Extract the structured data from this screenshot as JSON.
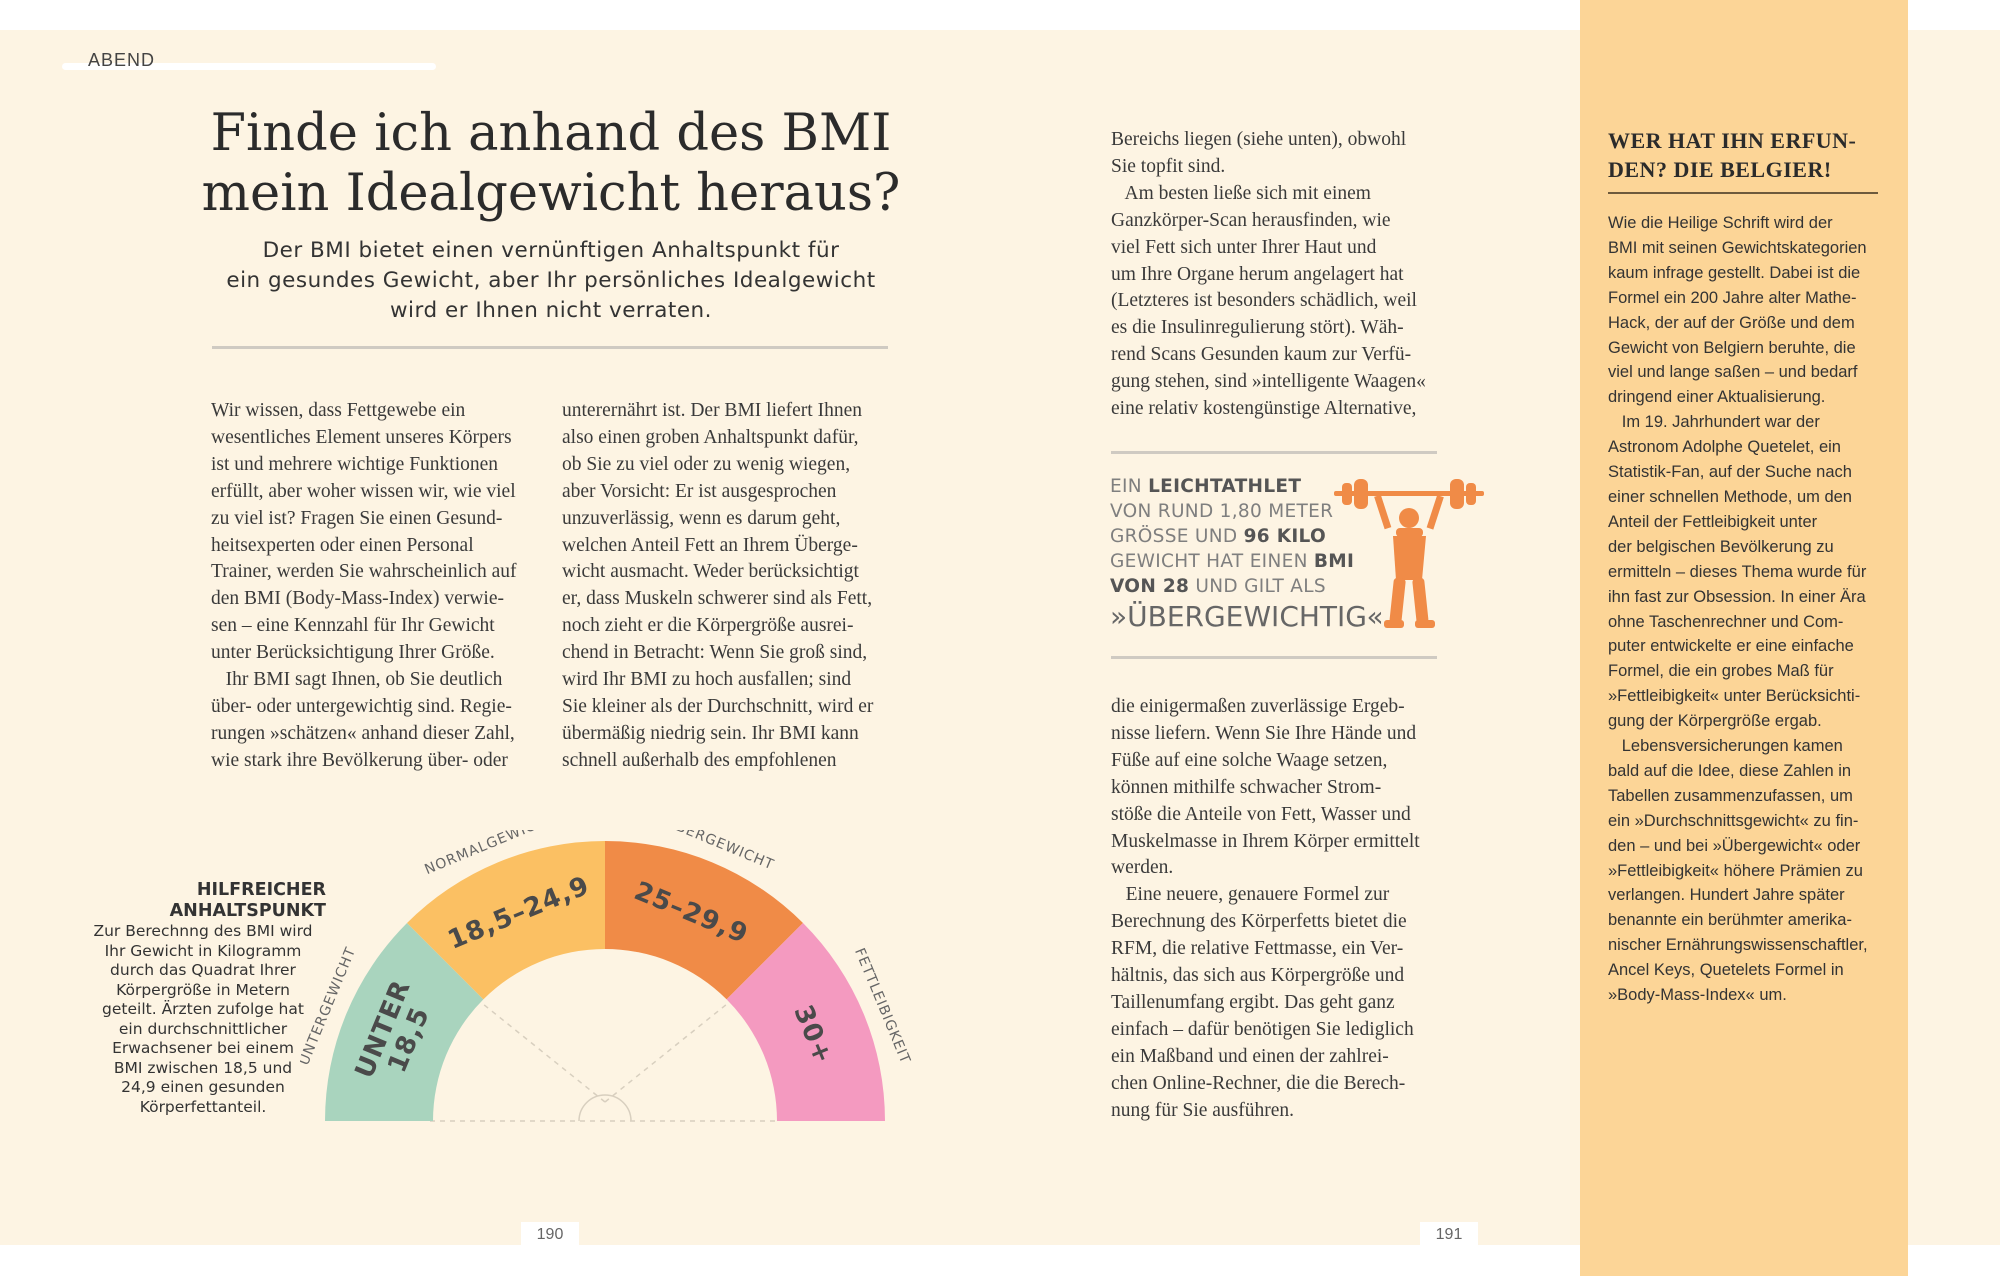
{
  "header": {
    "section": "ABEND"
  },
  "title": "Finde ich anhand des BMI mein Idealgewicht heraus?",
  "subtitle": [
    "Der BMI bietet einen vernünftigen Anhaltspunkt für",
    "ein gesundes Gewicht, aber Ihr persönliches Idealgewicht",
    "wird er Ihnen nicht verraten."
  ],
  "col1": [
    "Wir wissen, dass Fettgewebe ein",
    "wesentliches Element unseres Körpers",
    "ist und mehrere wichtige Funktionen",
    "erfüllt, aber woher wissen wir, wie viel",
    "zu viel ist? Fragen Sie einen Gesund-",
    "heitsexperten oder einen Personal",
    "Trainer, werden Sie wahrscheinlich auf",
    "den BMI (Body-Mass-Index) verwie-",
    "sen – eine Kennzahl für Ihr Gewicht",
    "unter Berücksichtigung Ihrer Größe.",
    "   Ihr BMI sagt Ihnen, ob Sie deutlich",
    "über- oder untergewichtig sind. Regie-",
    "rungen »schätzen« anhand dieser Zahl,",
    "wie stark ihre Bevölkerung über- oder"
  ],
  "col2": [
    "unterernährt ist. Der BMI liefert Ihnen",
    "also einen groben Anhaltspunkt dafür,",
    "ob Sie zu viel oder zu wenig wiegen,",
    "aber Vorsicht: Er ist ausgesprochen",
    "unzuverlässig, wenn es darum geht,",
    "welchen Anteil Fett an Ihrem Überge-",
    "wicht ausmacht. Weder berücksichtigt",
    "er, dass Muskeln schwerer sind als Fett,",
    "noch zieht er die Körpergröße ausrei-",
    "chend in Betracht: Wenn Sie groß sind,",
    "wird Ihr BMI zu hoch ausfallen; sind",
    "Sie kleiner als der Durchschnitt, wird er",
    "übermäßig niedrig sein. Ihr BMI kann",
    "schnell außerhalb des empfohlenen"
  ],
  "col3_top": [
    "Bereichs liegen (siehe unten), obwohl",
    "Sie topfit sind.",
    "   Am besten ließe sich mit einem",
    "Ganzkörper-Scan herausfinden, wie",
    "viel Fett sich unter Ihrer Haut und",
    "um Ihre Organe herum angelagert hat",
    "(Letzteres ist besonders schädlich, weil",
    "es die Insulinregulierung stört). Wäh-",
    "rend Scans Gesunden kaum zur Verfü-",
    "gung stehen, sind »intelligente Waagen«",
    "eine relativ kostengünstige Alternative,"
  ],
  "col3_bottom": [
    "die einigermaßen zuverlässige Ergeb-",
    "nisse liefern. Wenn Sie Ihre Hände und",
    "Füße auf eine solche Waage setzen,",
    "können mithilfe schwacher Strom-",
    "stöße die Anteile von Fett, Wasser und",
    "Muskelmasse in Ihrem Körper ermittelt",
    "werden.",
    "   Eine neuere, genauere Formel zur",
    "Berechnung des Körperfetts bietet die",
    "RFM, die relative Fettmasse, ein Ver-",
    "hältnis, das sich aus Körpergröße und",
    "Taillenumfang ergibt. Das geht ganz",
    "einfach – dafür benötigen Sie lediglich",
    "ein Maßband und einen der zahlrei-",
    "chen Online-Rechner, die die Berech-",
    "nung für Sie ausführen."
  ],
  "athlete": {
    "l1a": "EIN ",
    "l1b": "LEICHTATHLET",
    "l2": "VON RUND 1,80 METER",
    "l3a": "GRÖSSE UND ",
    "l3b": "96 KILO",
    "l4a": "GEWICHT HAT EINEN ",
    "l4b": "BMI",
    "l5a": "VON 28",
    "l5b": " UND GILT ALS",
    "l6": "»ÜBERGEWICHTIG«."
  },
  "help": {
    "title1": "HILFREICHER",
    "title2": "ANHALTSPUNKT",
    "lines": [
      "Zur Berechnng des BMI wird",
      "Ihr Gewicht in Kilogramm",
      "durch das Quadrat Ihrer",
      "Körpergröße in Metern",
      "geteilt. Ärzten zufolge hat",
      "ein durchschnittlicher",
      "Erwachsener bei einem",
      "BMI zwischen 18,5 und",
      "24,9 einen gesunden",
      "Körperfettanteil."
    ]
  },
  "gauge": {
    "segments": [
      {
        "value": "UNTER",
        "value2": "18,5",
        "label": "UNTERGEWICHT",
        "color": "#a9d4be"
      },
      {
        "value": "18,5–24,9",
        "label": "NORMALGEWICHT",
        "color": "#fbc063"
      },
      {
        "value": "25–29,9",
        "label": "ÜBERGEWICHT",
        "color": "#f08b47"
      },
      {
        "value": "30+",
        "label": "FETTLEIBIGKEIT",
        "color": "#f49ac0"
      }
    ]
  },
  "sidebar": {
    "title": "WER HAT IHN ERFUN-\nDEN? DIE BELGIER!",
    "lines": [
      "Wie die Heilige Schrift wird der",
      "BMI mit seinen Gewichtskategorien",
      "kaum infrage gestellt. Dabei ist die",
      "Formel ein 200 Jahre alter Mathe-",
      "Hack, der auf der Größe und dem",
      "Gewicht von Belgiern beruhte, die",
      "viel und lange saßen – und bedarf",
      "dringend einer Aktualisierung.",
      "   Im 19. Jahrhundert war der",
      "Astronom Adolphe Quetelet, ein",
      "Statistik-Fan, auf der Suche nach",
      "einer schnellen Methode, um den",
      "Anteil der Fettleibigkeit unter",
      "der belgischen Bevölkerung zu",
      "ermitteln – dieses Thema wurde für",
      "ihn fast zur Obsession. In einer Ära",
      "ohne Taschenrechner und Com-",
      "puter entwickelte er eine einfache",
      "Formel, die ein grobes Maß für",
      "»Fettleibigkeit« unter Berücksichti-",
      "gung der Körpergröße ergab.",
      "   Lebensversicherungen kamen",
      "bald auf die Idee, diese Zahlen in",
      "Tabellen zusammenzufassen, um",
      "ein »Durchschnittsgewicht« zu fin-",
      "den – und bei »Übergewicht« oder",
      "»Fettleibigkeit« höhere Prämien zu",
      "verlangen. Hundert Jahre später",
      "benannte ein berühmter amerika-",
      "nischer Ernährungswissenschaftler,",
      "Ancel Keys, Quetelets Formel in",
      "»Body-Mass-Index« um."
    ]
  },
  "pages": {
    "left": "190",
    "right": "191"
  },
  "colors": {
    "page": "#fdf4e3",
    "sidebar": "#fcd597",
    "athlete_figure": "#f08b47"
  }
}
